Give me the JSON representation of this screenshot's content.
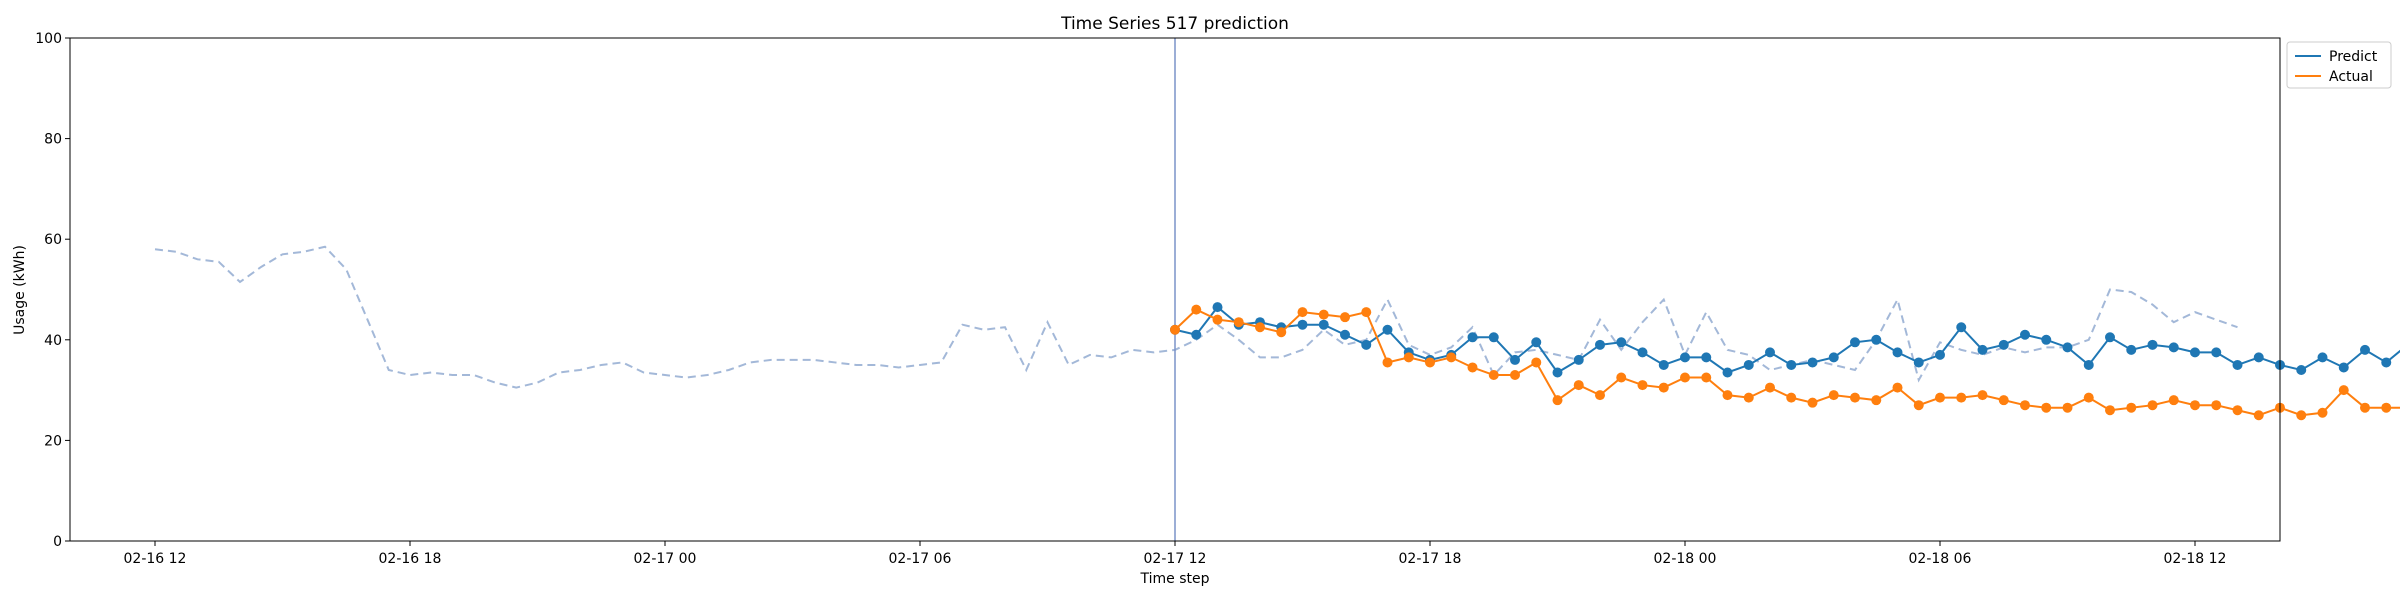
{
  "chart_data": {
    "type": "line",
    "title": "Time Series 517 prediction",
    "xlabel": "Time step",
    "ylabel": "Usage (kWh)",
    "ylim": [
      0,
      100
    ],
    "yticks": [
      0,
      20,
      40,
      60,
      80,
      100
    ],
    "xaxis": {
      "kind": "datetime",
      "min": "2016-02-16 10:00",
      "max": "2016-02-18 14:00",
      "ticks": [
        {
          "value": "2016-02-16 12:00",
          "label": "02-16 12"
        },
        {
          "value": "2016-02-16 18:00",
          "label": "02-16 18"
        },
        {
          "value": "2016-02-17 00:00",
          "label": "02-17 00"
        },
        {
          "value": "2016-02-17 06:00",
          "label": "02-17 06"
        },
        {
          "value": "2016-02-17 12:00",
          "label": "02-17 12"
        },
        {
          "value": "2016-02-17 18:00",
          "label": "02-17 18"
        },
        {
          "value": "2016-02-18 00:00",
          "label": "02-18 00"
        },
        {
          "value": "2016-02-18 06:00",
          "label": "02-18 06"
        },
        {
          "value": "2016-02-18 12:00",
          "label": "02-18 12"
        }
      ]
    },
    "grid": false,
    "legend": {
      "position": "top-right (outside plot)",
      "entries": [
        "Predict",
        "Actual"
      ]
    },
    "forecast_start": "2016-02-17 12:00",
    "step_minutes": 30,
    "history": {
      "start": "2016-02-16 12:00",
      "color": "#a3b8d8",
      "style": "dashed",
      "values": [
        58,
        57.5,
        56,
        55.5,
        51.5,
        54.5,
        57,
        57.5,
        58.5,
        54,
        44,
        34,
        33,
        33.5,
        33,
        33,
        31.5,
        30.5,
        31.5,
        33.5,
        34,
        35,
        35.5,
        33.5,
        33,
        32.5,
        33,
        34,
        35.5,
        36,
        36,
        36,
        35.5,
        35,
        35,
        34.5,
        35,
        35.5,
        43,
        42,
        42.5,
        34,
        43.5,
        35,
        37,
        36.5,
        38,
        37.5,
        38,
        40,
        43,
        40,
        36.5,
        36.5,
        38,
        42,
        39,
        40,
        48,
        39,
        37,
        38.5,
        42.5,
        33,
        37.5,
        38,
        37,
        36,
        44,
        38,
        43.5,
        48,
        37,
        45.5,
        38,
        37,
        34,
        35,
        36,
        35,
        34,
        40,
        48,
        32,
        39.5,
        38,
        37,
        38.5,
        37.5,
        38.5,
        38.5,
        40,
        50,
        49.5,
        47,
        43.5,
        45.5,
        44,
        42.5
      ]
    },
    "series": [
      {
        "name": "Predict",
        "color": "#1f77b4",
        "start": "2016-02-17 12:00",
        "values": [
          42,
          41,
          46.5,
          43,
          43.5,
          42.5,
          43,
          43,
          41,
          39,
          42,
          37.5,
          36,
          37,
          40.5,
          40.5,
          36,
          39.5,
          33.5,
          36,
          39,
          39.5,
          37.5,
          35,
          36.5,
          36.5,
          33.5,
          35,
          37.5,
          35,
          35.5,
          36.5,
          39.5,
          40,
          37.5,
          35.5,
          37,
          42.5,
          38,
          39,
          41,
          40,
          38.5,
          35,
          40.5,
          38,
          39,
          38.5,
          37.5,
          37.5,
          35,
          36.5,
          35,
          34,
          36.5,
          34.5,
          38,
          35.5,
          39,
          36.5,
          37.5,
          39.5,
          40,
          39.5,
          37.5,
          40.5,
          36,
          39.5,
          40,
          38,
          37,
          38.5,
          36,
          39,
          38,
          40.5,
          37.5,
          40,
          40,
          39,
          39.5,
          38.5,
          40,
          42,
          43,
          40.5,
          39.5,
          40.5,
          41,
          39,
          40.5,
          39.5,
          45.5,
          41,
          42.5,
          39
        ]
      },
      {
        "name": "Actual",
        "color": "#ff7f0e",
        "start": "2016-02-17 12:00",
        "values": [
          42,
          46,
          44,
          43.5,
          42.5,
          41.5,
          45.5,
          45,
          44.5,
          45.5,
          35.5,
          36.5,
          35.5,
          36.5,
          34.5,
          33,
          33,
          35.5,
          28,
          31,
          29,
          32.5,
          31,
          30.5,
          32.5,
          32.5,
          29,
          28.5,
          30.5,
          28.5,
          27.5,
          29,
          28.5,
          28,
          30.5,
          27,
          28.5,
          28.5,
          29,
          28,
          27,
          26.5,
          26.5,
          28.5,
          26,
          26.5,
          27,
          28,
          27,
          27,
          26,
          25,
          26.5,
          25,
          25.5,
          30,
          26.5,
          26.5,
          26.5,
          27,
          26,
          26.5,
          28,
          24.5,
          28,
          25,
          25,
          26,
          25,
          28.5,
          28,
          27,
          23.5,
          27,
          25,
          26.5,
          27.5,
          25,
          26,
          26,
          28,
          26,
          24.5,
          27,
          25.5,
          27,
          35.5,
          38.5,
          35.5,
          36,
          36.5,
          35.5,
          35.5,
          35.5,
          34.5,
          34.5
        ]
      }
    ]
  }
}
